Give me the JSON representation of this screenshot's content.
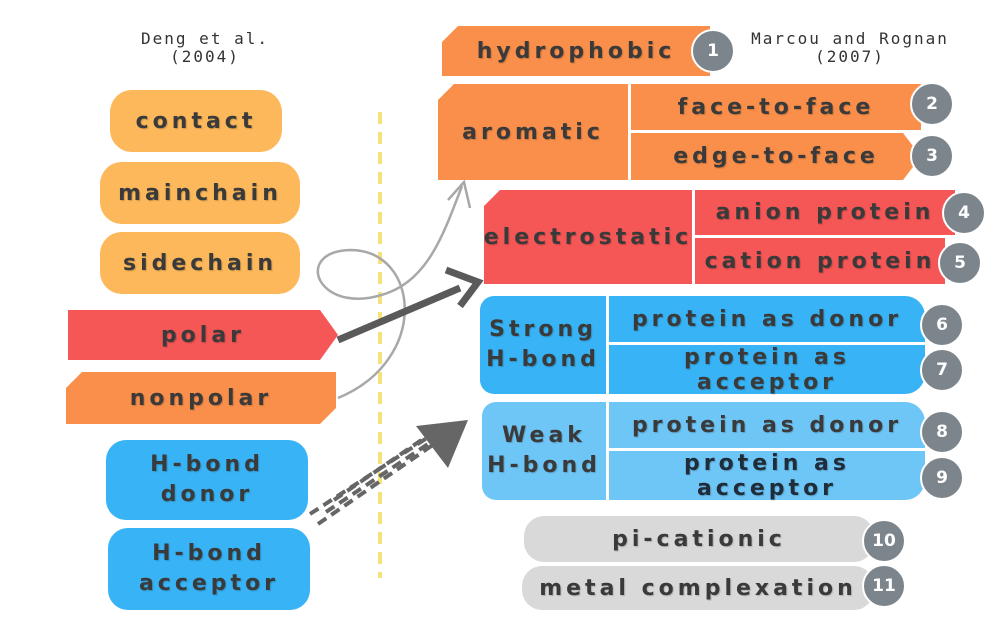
{
  "left_header": {
    "line1": "Deng et al.",
    "line2": "(2004)"
  },
  "right_header": {
    "line1": "Marcou and Rognan",
    "line2": "(2007)"
  },
  "left_terms": {
    "contact": "contact",
    "mainchain": "mainchain",
    "sidechain": "sidechain",
    "polar": "polar",
    "nonpolar": "nonpolar",
    "hbond_donor": {
      "line1": "H-bond",
      "line2": "donor"
    },
    "hbond_acceptor": {
      "line1": "H-bond",
      "line2": "acceptor"
    }
  },
  "right_terms": {
    "hydrophobic": "hydrophobic",
    "aromatic": "aromatic",
    "face_to_face": "face-to-face",
    "edge_to_face": "edge-to-face",
    "electrostatic": "electrostatic",
    "anion_protein": "anion protein",
    "cation_protein": "cation protein",
    "strong_hbond": {
      "line1": "Strong",
      "line2": "H-bond"
    },
    "strong_donor": "protein as donor",
    "strong_acceptor": "protein as acceptor",
    "weak_hbond": {
      "line1": "Weak",
      "line2": "H-bond"
    },
    "weak_donor": "protein as donor",
    "weak_acceptor": "protein as acceptor",
    "pi_cationic": "pi-cationic",
    "metal_complexation": "metal complexation"
  },
  "numbers": [
    "1",
    "2",
    "3",
    "4",
    "5",
    "6",
    "7",
    "8",
    "9",
    "10",
    "11"
  ],
  "colors": {
    "yellow": "#fcb85a",
    "orange": "#f98f4a",
    "red": "#f55656",
    "blue": "#38b3f5",
    "light_blue": "#6ec6f7",
    "grey": "#d9d9d9",
    "badge": "#7d858c",
    "divider": "#f7e27a"
  }
}
